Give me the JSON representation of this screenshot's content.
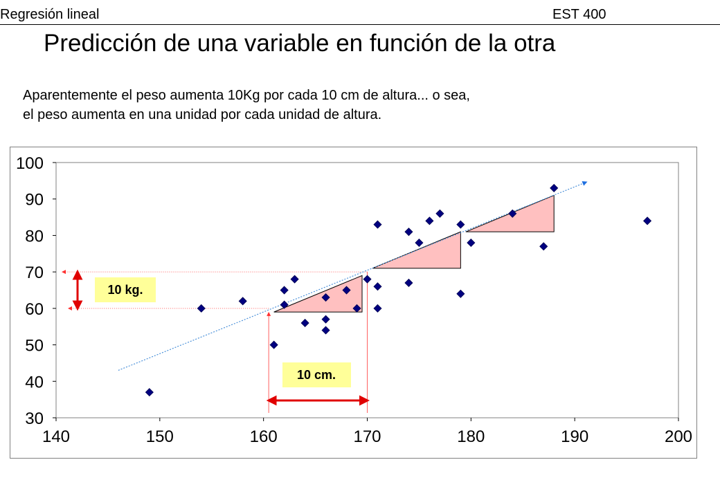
{
  "header": {
    "left": "Regresión lineal",
    "right": "EST 400"
  },
  "title": "Predicción de una variable en función de la otra",
  "intro": {
    "line1": "Aparentemente el peso aumenta 10Kg por cada 10 cm de altura... o sea,",
    "line2": "el peso aumenta en una unidad por cada unidad de altura."
  },
  "colors": {
    "points": "#000080",
    "trend": "#4a90d9",
    "triangle_fill": "#ffc0c0",
    "guide": "#ff6060",
    "arrow": "#e00000",
    "label_bg": "#ffff99"
  },
  "chart_data": {
    "type": "scatter",
    "xlim": [
      140,
      200
    ],
    "ylim": [
      30,
      100
    ],
    "xticks": [
      140,
      150,
      160,
      170,
      180,
      190,
      200
    ],
    "yticks": [
      30,
      40,
      50,
      60,
      70,
      80,
      90,
      100
    ],
    "grid": false,
    "points": [
      {
        "x": 149,
        "y": 37
      },
      {
        "x": 154,
        "y": 60
      },
      {
        "x": 158,
        "y": 62
      },
      {
        "x": 161,
        "y": 50
      },
      {
        "x": 162,
        "y": 61
      },
      {
        "x": 162,
        "y": 65
      },
      {
        "x": 163,
        "y": 68
      },
      {
        "x": 164,
        "y": 56
      },
      {
        "x": 166,
        "y": 54
      },
      {
        "x": 166,
        "y": 57
      },
      {
        "x": 166,
        "y": 63
      },
      {
        "x": 168,
        "y": 65
      },
      {
        "x": 169,
        "y": 60
      },
      {
        "x": 170,
        "y": 68
      },
      {
        "x": 171,
        "y": 60
      },
      {
        "x": 171,
        "y": 66
      },
      {
        "x": 171,
        "y": 83
      },
      {
        "x": 174,
        "y": 67
      },
      {
        "x": 174,
        "y": 81
      },
      {
        "x": 175,
        "y": 78
      },
      {
        "x": 176,
        "y": 84
      },
      {
        "x": 177,
        "y": 86
      },
      {
        "x": 179,
        "y": 64
      },
      {
        "x": 179,
        "y": 83
      },
      {
        "x": 180,
        "y": 78
      },
      {
        "x": 184,
        "y": 86
      },
      {
        "x": 187,
        "y": 77
      },
      {
        "x": 188,
        "y": 93
      },
      {
        "x": 197,
        "y": 84
      }
    ],
    "trend_line": {
      "x": [
        146,
        191
      ],
      "y": [
        43,
        94.5
      ]
    },
    "step_triangles": [
      {
        "x": [
          161,
          169.5
        ],
        "y": [
          59,
          69
        ]
      },
      {
        "x": [
          170.5,
          179
        ],
        "y": [
          71,
          81
        ]
      },
      {
        "x": [
          179.5,
          188
        ],
        "y": [
          81,
          91
        ]
      }
    ],
    "annotations": {
      "kg_label": "10 kg.",
      "cm_label": "10 cm.",
      "kg_span": [
        60,
        70
      ],
      "cm_span": [
        160.5,
        170
      ]
    }
  }
}
